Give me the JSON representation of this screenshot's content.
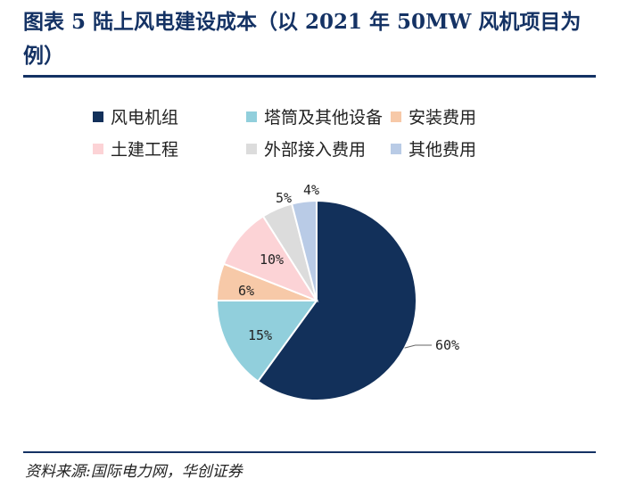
{
  "figure": {
    "title": "图表 5   陆上风电建设成本（以 2021 年 50MW 风机项目为例）",
    "source": "资料来源:国际电力网，华创证券"
  },
  "chart_data": {
    "type": "pie",
    "title": "",
    "slices": [
      {
        "label": "风电机组",
        "value": 60,
        "display": "60%",
        "color": "#12305a"
      },
      {
        "label": "塔筒及其他设备",
        "value": 15,
        "display": "15%",
        "color": "#91cfdc"
      },
      {
        "label": "安装费用",
        "value": 6,
        "display": "6%",
        "color": "#f7c9a8"
      },
      {
        "label": "土建工程",
        "value": 10,
        "display": "10%",
        "color": "#fcd3d6"
      },
      {
        "label": "外部接入费用",
        "value": 5,
        "display": "5%",
        "color": "#dcdcdc"
      },
      {
        "label": "其他费用",
        "value": 4,
        "display": "4%",
        "color": "#b9cbe6"
      }
    ],
    "legend_position": "top"
  }
}
